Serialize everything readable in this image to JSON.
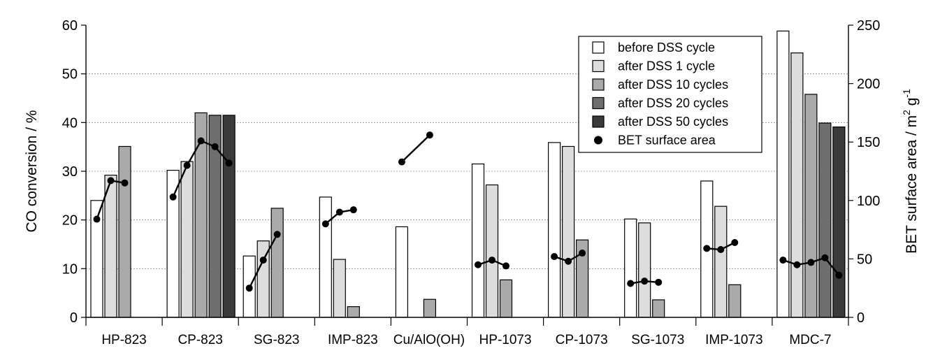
{
  "chart_data": {
    "type": "bar",
    "ylabel": "CO conversion / %",
    "y2label_main": "BET surface area / m",
    "y2label_sup1": "2",
    "y2label_mid": " g",
    "y2label_sup2": "-1",
    "ylim": [
      0,
      60
    ],
    "y2lim": [
      0,
      250
    ],
    "y_ticks": [
      "0",
      "10",
      "20",
      "30",
      "40",
      "50",
      "60"
    ],
    "y2_ticks": [
      "0",
      "50",
      "100",
      "150",
      "200",
      "250"
    ],
    "grid": "horizontal-dashed",
    "legend_position": "top-right",
    "categories": [
      "HP-823",
      "CP-823",
      "SG-823",
      "IMP-823",
      "Cu/AlO(OH)",
      "HP-1073",
      "CP-1073",
      "SG-1073",
      "IMP-1073",
      "MDC-7"
    ],
    "series": [
      {
        "name": "before DSS cycle",
        "color": "#ffffff",
        "values": [
          24.0,
          30.2,
          12.6,
          24.7,
          18.6,
          31.5,
          35.9,
          20.2,
          28.0,
          58.8
        ]
      },
      {
        "name": "after DSS 1 cycle",
        "color": "#dddddd",
        "values": [
          29.2,
          32.0,
          15.7,
          11.9,
          null,
          27.2,
          35.1,
          19.4,
          22.8,
          54.3
        ]
      },
      {
        "name": "after DSS 10 cycles",
        "color": "#aaaaaa",
        "values": [
          35.1,
          42.0,
          22.4,
          2.2,
          3.7,
          7.7,
          15.9,
          3.6,
          6.7,
          45.8
        ]
      },
      {
        "name": "after DSS 20 cycles",
        "color": "#6e6e6e",
        "values": [
          null,
          41.5,
          null,
          null,
          null,
          null,
          null,
          null,
          null,
          39.9
        ]
      },
      {
        "name": "after DSS 50 cycles",
        "color": "#3a3a3a",
        "values": [
          null,
          41.5,
          null,
          null,
          null,
          null,
          null,
          null,
          null,
          39.1
        ]
      }
    ],
    "bet_series": {
      "name": "BET surface area",
      "color": "#000000",
      "values": [
        [
          84,
          117,
          115,
          null,
          null
        ],
        [
          103,
          130,
          151,
          146,
          132
        ],
        [
          25,
          49,
          71,
          null,
          null
        ],
        [
          80,
          90,
          92,
          null,
          null
        ],
        [
          133,
          null,
          156,
          null,
          null
        ],
        [
          45,
          49,
          44,
          null,
          null
        ],
        [
          52,
          48,
          55,
          null,
          null
        ],
        [
          29,
          31,
          30,
          null,
          null
        ],
        [
          59,
          58,
          64,
          null,
          null
        ],
        [
          49,
          45,
          47,
          51,
          36
        ]
      ]
    }
  }
}
